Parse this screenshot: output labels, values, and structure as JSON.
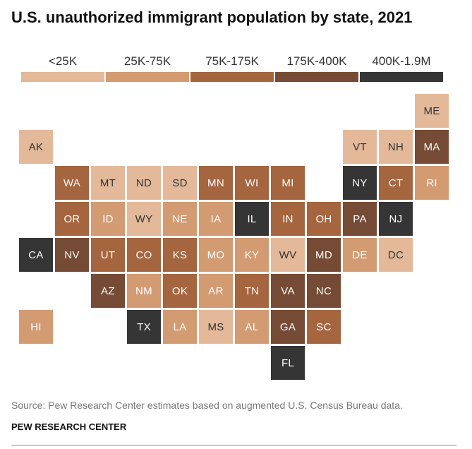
{
  "title": "U.S. unauthorized immigrant population by state, 2021",
  "legend": [
    {
      "label": "<25K",
      "color": "#e3b99a"
    },
    {
      "label": "25K-75K",
      "color": "#d39b72"
    },
    {
      "label": "75K-175K",
      "color": "#a5653f"
    },
    {
      "label": "175K-400K",
      "color": "#764b35"
    },
    {
      "label": "400K-1.9M",
      "color": "#353535"
    }
  ],
  "states": [
    {
      "abbr": "ME",
      "row": 0,
      "col": 11,
      "bin": 0
    },
    {
      "abbr": "AK",
      "row": 1,
      "col": 0,
      "bin": 0
    },
    {
      "abbr": "VT",
      "row": 1,
      "col": 9,
      "bin": 0
    },
    {
      "abbr": "NH",
      "row": 1,
      "col": 10,
      "bin": 0
    },
    {
      "abbr": "MA",
      "row": 1,
      "col": 11,
      "bin": 3
    },
    {
      "abbr": "WA",
      "row": 2,
      "col": 1,
      "bin": 2
    },
    {
      "abbr": "MT",
      "row": 2,
      "col": 2,
      "bin": 0
    },
    {
      "abbr": "ND",
      "row": 2,
      "col": 3,
      "bin": 0
    },
    {
      "abbr": "SD",
      "row": 2,
      "col": 4,
      "bin": 0
    },
    {
      "abbr": "MN",
      "row": 2,
      "col": 5,
      "bin": 2
    },
    {
      "abbr": "WI",
      "row": 2,
      "col": 6,
      "bin": 2
    },
    {
      "abbr": "MI",
      "row": 2,
      "col": 7,
      "bin": 2
    },
    {
      "abbr": "NY",
      "row": 2,
      "col": 9,
      "bin": 4
    },
    {
      "abbr": "CT",
      "row": 2,
      "col": 10,
      "bin": 2
    },
    {
      "abbr": "RI",
      "row": 2,
      "col": 11,
      "bin": 1
    },
    {
      "abbr": "OR",
      "row": 3,
      "col": 1,
      "bin": 2
    },
    {
      "abbr": "ID",
      "row": 3,
      "col": 2,
      "bin": 1
    },
    {
      "abbr": "WY",
      "row": 3,
      "col": 3,
      "bin": 0
    },
    {
      "abbr": "NE",
      "row": 3,
      "col": 4,
      "bin": 1
    },
    {
      "abbr": "IA",
      "row": 3,
      "col": 5,
      "bin": 1
    },
    {
      "abbr": "IL",
      "row": 3,
      "col": 6,
      "bin": 4
    },
    {
      "abbr": "IN",
      "row": 3,
      "col": 7,
      "bin": 2
    },
    {
      "abbr": "OH",
      "row": 3,
      "col": 8,
      "bin": 2
    },
    {
      "abbr": "PA",
      "row": 3,
      "col": 9,
      "bin": 3
    },
    {
      "abbr": "NJ",
      "row": 3,
      "col": 10,
      "bin": 4
    },
    {
      "abbr": "CA",
      "row": 4,
      "col": 0,
      "bin": 4
    },
    {
      "abbr": "NV",
      "row": 4,
      "col": 1,
      "bin": 3
    },
    {
      "abbr": "UT",
      "row": 4,
      "col": 2,
      "bin": 2
    },
    {
      "abbr": "CO",
      "row": 4,
      "col": 3,
      "bin": 2
    },
    {
      "abbr": "KS",
      "row": 4,
      "col": 4,
      "bin": 2
    },
    {
      "abbr": "MO",
      "row": 4,
      "col": 5,
      "bin": 1
    },
    {
      "abbr": "KY",
      "row": 4,
      "col": 6,
      "bin": 1
    },
    {
      "abbr": "WV",
      "row": 4,
      "col": 7,
      "bin": 0
    },
    {
      "abbr": "MD",
      "row": 4,
      "col": 8,
      "bin": 3
    },
    {
      "abbr": "DE",
      "row": 4,
      "col": 9,
      "bin": 1
    },
    {
      "abbr": "DC",
      "row": 4,
      "col": 10,
      "bin": 0
    },
    {
      "abbr": "AZ",
      "row": 5,
      "col": 2,
      "bin": 3
    },
    {
      "abbr": "NM",
      "row": 5,
      "col": 3,
      "bin": 1
    },
    {
      "abbr": "OK",
      "row": 5,
      "col": 4,
      "bin": 2
    },
    {
      "abbr": "AR",
      "row": 5,
      "col": 5,
      "bin": 1
    },
    {
      "abbr": "TN",
      "row": 5,
      "col": 6,
      "bin": 2
    },
    {
      "abbr": "VA",
      "row": 5,
      "col": 7,
      "bin": 3
    },
    {
      "abbr": "NC",
      "row": 5,
      "col": 8,
      "bin": 3
    },
    {
      "abbr": "HI",
      "row": 6,
      "col": 0,
      "bin": 1
    },
    {
      "abbr": "TX",
      "row": 6,
      "col": 3,
      "bin": 4
    },
    {
      "abbr": "LA",
      "row": 6,
      "col": 4,
      "bin": 1
    },
    {
      "abbr": "MS",
      "row": 6,
      "col": 5,
      "bin": 0
    },
    {
      "abbr": "AL",
      "row": 6,
      "col": 6,
      "bin": 1
    },
    {
      "abbr": "GA",
      "row": 6,
      "col": 7,
      "bin": 3
    },
    {
      "abbr": "SC",
      "row": 6,
      "col": 8,
      "bin": 2
    },
    {
      "abbr": "FL",
      "row": 7,
      "col": 7,
      "bin": 4
    }
  ],
  "source": "Source: Pew Research Center estimates based on augmented U.S. Census Bureau data.",
  "credit": "PEW RESEARCH CENTER"
}
